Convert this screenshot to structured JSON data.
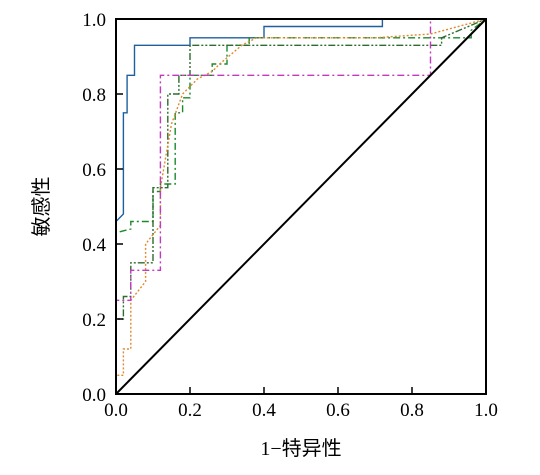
{
  "chart_data": {
    "type": "line",
    "xlabel": "1−特异性",
    "ylabel": "敏感性",
    "xlim": [
      0,
      1
    ],
    "ylim": [
      0,
      1
    ],
    "xticks": [
      "0.0",
      "0.2",
      "0.4",
      "0.6",
      "0.8",
      "1.0"
    ],
    "yticks": [
      "0.0",
      "0.2",
      "0.4",
      "0.6",
      "0.8",
      "1.0"
    ],
    "grid": false,
    "legend": "none",
    "series": [
      {
        "color": "#1f5f9e",
        "style": "solid",
        "x": [
          0,
          0,
          0.02,
          0.02,
          0.03,
          0.03,
          0.05,
          0.05,
          0.2,
          0.2,
          0.4,
          0.4,
          0.72,
          0.72,
          1.0
        ],
        "y": [
          0,
          0.46,
          0.48,
          0.75,
          0.75,
          0.85,
          0.85,
          0.93,
          0.93,
          0.95,
          0.95,
          0.98,
          0.98,
          1.0,
          1.0
        ]
      },
      {
        "color": "#1a8a2a",
        "style": "dashdot",
        "x": [
          0,
          0,
          0.04,
          0.04,
          0.1,
          0.1,
          0.12,
          0.12,
          0.16,
          0.16,
          0.18,
          0.18,
          0.2,
          0.2,
          0.26,
          0.26,
          0.3,
          0.3,
          0.36,
          0.36,
          0.46,
          0.46,
          0.96,
          0.96,
          1.0
        ],
        "y": [
          0,
          0.43,
          0.44,
          0.46,
          0.46,
          0.54,
          0.54,
          0.56,
          0.56,
          0.75,
          0.75,
          0.79,
          0.79,
          0.85,
          0.85,
          0.88,
          0.88,
          0.93,
          0.93,
          0.95,
          0.95,
          0.95,
          0.95,
          0.97,
          1.0
        ]
      },
      {
        "color": "#2e6b2e",
        "style": "dashdotdot",
        "x": [
          0,
          0,
          0.02,
          0.02,
          0.04,
          0.04,
          0.1,
          0.1,
          0.14,
          0.14,
          0.17,
          0.17,
          0.2,
          0.2,
          0.34,
          0.34,
          0.88,
          0.88,
          1.0
        ],
        "y": [
          0,
          0.2,
          0.2,
          0.26,
          0.26,
          0.35,
          0.35,
          0.55,
          0.55,
          0.8,
          0.8,
          0.85,
          0.85,
          0.93,
          0.93,
          0.93,
          0.93,
          0.95,
          1.0
        ]
      },
      {
        "color": "#e08a2e",
        "style": "dotted",
        "x": [
          0,
          0,
          0.02,
          0.02,
          0.04,
          0.04,
          0.08,
          0.08,
          0.12,
          0.12,
          0.15,
          0.18,
          0.2,
          0.22,
          0.26,
          0.28,
          0.34,
          0.38,
          0.5,
          0.7,
          0.85,
          1.0
        ],
        "y": [
          0,
          0.05,
          0.05,
          0.12,
          0.12,
          0.25,
          0.3,
          0.4,
          0.45,
          0.55,
          0.72,
          0.8,
          0.82,
          0.84,
          0.86,
          0.88,
          0.93,
          0.95,
          0.95,
          0.95,
          0.96,
          1.0
        ]
      },
      {
        "color": "#c23ac2",
        "style": "dashdot",
        "x": [
          0,
          0,
          0.04,
          0.04,
          0.12,
          0.12,
          0.85,
          0.85,
          1.0
        ],
        "y": [
          0,
          0.25,
          0.25,
          0.33,
          0.33,
          0.85,
          0.85,
          1.0,
          1.0
        ]
      },
      {
        "color": "#000000",
        "style": "solid",
        "reference": true,
        "x": [
          0,
          1
        ],
        "y": [
          0,
          1
        ]
      }
    ]
  }
}
